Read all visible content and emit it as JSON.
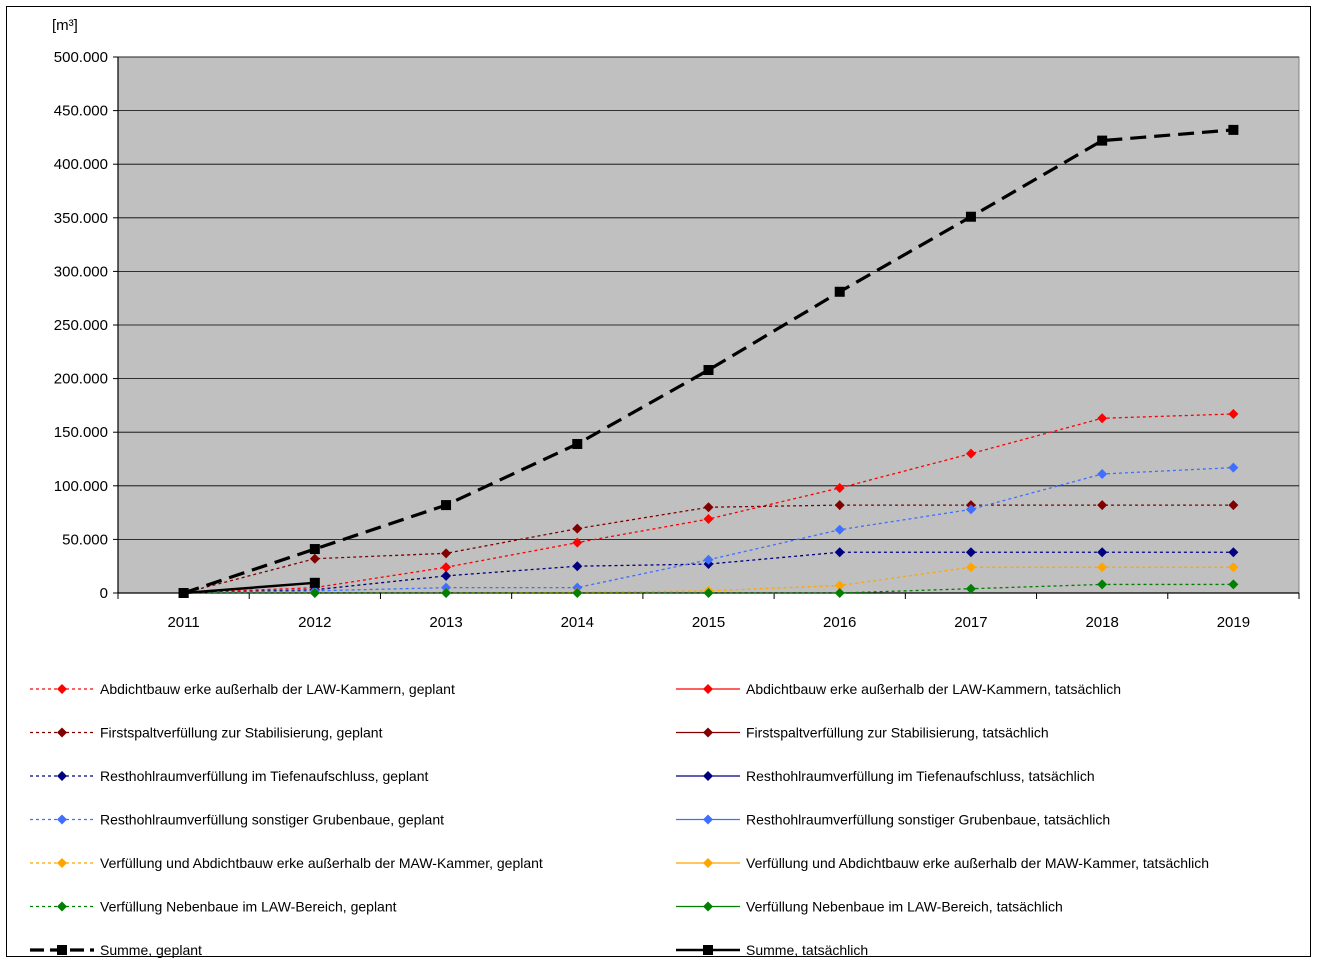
{
  "chart_data": {
    "type": "line",
    "unit_label": "[m³]",
    "x": [
      "2011",
      "2012",
      "2013",
      "2014",
      "2015",
      "2016",
      "2017",
      "2018",
      "2019"
    ],
    "ylim": [
      0,
      500000
    ],
    "yticks": [
      {
        "value": 0,
        "label": "0"
      },
      {
        "value": 50000,
        "label": "50.000"
      },
      {
        "value": 100000,
        "label": "100.000"
      },
      {
        "value": 150000,
        "label": "150.000"
      },
      {
        "value": 200000,
        "label": "200.000"
      },
      {
        "value": 250000,
        "label": "250.000"
      },
      {
        "value": 300000,
        "label": "300.000"
      },
      {
        "value": 350000,
        "label": "350.000"
      },
      {
        "value": 400000,
        "label": "400.000"
      },
      {
        "value": 450000,
        "label": "450.000"
      },
      {
        "value": 500000,
        "label": "500.000"
      }
    ],
    "grid": "horizontal",
    "legend_position": "bottom",
    "series": [
      {
        "name": "Abdichtbauw erke außerhalb der LAW-Kammern, geplant",
        "color": "#ff0000",
        "style": "dotted",
        "marker": "diamond",
        "values": [
          0,
          5000,
          24000,
          47000,
          69000,
          98000,
          130000,
          163000,
          167000
        ]
      },
      {
        "name": "Abdichtbauw erke außerhalb der LAW-Kammern, tatsächlich",
        "color": "#ff0000",
        "style": "solid",
        "marker": "diamond",
        "values": [
          0,
          null,
          null,
          null,
          null,
          null,
          null,
          null,
          null
        ]
      },
      {
        "name": "Firstspaltverfüllung zur Stabilisierung, geplant",
        "color": "#800000",
        "style": "dotted",
        "marker": "diamond",
        "values": [
          0,
          32000,
          37000,
          60000,
          80000,
          82000,
          82000,
          82000,
          82000
        ]
      },
      {
        "name": "Firstspaltverfüllung zur Stabilisierung, tatsächlich",
        "color": "#800000",
        "style": "solid",
        "marker": "diamond",
        "values": [
          0,
          null,
          null,
          null,
          null,
          null,
          null,
          null,
          null
        ]
      },
      {
        "name": "Resthohlraumverfüllung im Tiefenaufschluss, geplant",
        "color": "#000080",
        "style": "dotted",
        "marker": "diamond",
        "values": [
          0,
          3000,
          16000,
          25000,
          27000,
          38000,
          38000,
          38000,
          38000
        ]
      },
      {
        "name": "Resthohlraumverfüllung im Tiefenaufschluss, tatsächlich",
        "color": "#000080",
        "style": "solid",
        "marker": "diamond",
        "values": [
          0,
          null,
          null,
          null,
          null,
          null,
          null,
          null,
          null
        ]
      },
      {
        "name": "Resthohlraumverfüllung sonstiger Grubenbaue, geplant",
        "color": "#3f6fff",
        "style": "dotted",
        "marker": "diamond",
        "values": [
          0,
          2000,
          5000,
          5000,
          31000,
          59000,
          78000,
          111000,
          117000
        ]
      },
      {
        "name": "Resthohlraumverfüllung sonstiger Grubenbaue, tatsächlich",
        "color": "#3f6fff",
        "style": "solid",
        "marker": "diamond",
        "values": [
          0,
          null,
          null,
          null,
          null,
          null,
          null,
          null,
          null
        ]
      },
      {
        "name": "Verfüllung und Abdichtbauw erke außerhalb der MAW-Kammer, geplant",
        "color": "#ffa500",
        "style": "dotted",
        "marker": "diamond",
        "values": [
          0,
          0,
          0,
          500,
          2000,
          7000,
          24000,
          24000,
          24000
        ]
      },
      {
        "name": "Verfüllung und Abdichtbauw erke außerhalb der MAW-Kammer, tatsächlich",
        "color": "#ffa500",
        "style": "solid",
        "marker": "diamond",
        "values": [
          0,
          null,
          null,
          null,
          null,
          null,
          null,
          null,
          null
        ]
      },
      {
        "name": "Verfüllung Nebenbaue im LAW-Bereich, geplant",
        "color": "#008000",
        "style": "dotted",
        "marker": "diamond",
        "values": [
          0,
          0,
          0,
          0,
          0,
          0,
          4000,
          8000,
          8000
        ]
      },
      {
        "name": "Verfüllung Nebenbaue im LAW-Bereich, tatsächlich",
        "color": "#008000",
        "style": "solid",
        "marker": "diamond",
        "values": [
          0,
          null,
          null,
          null,
          null,
          null,
          null,
          null,
          null
        ]
      },
      {
        "name": "Summe, geplant",
        "color": "#000000",
        "style": "dashed",
        "marker": "square",
        "values": [
          0,
          41000,
          82000,
          139000,
          208000,
          281000,
          351000,
          422000,
          432000
        ]
      },
      {
        "name": "Summe, tatsächlich",
        "color": "#000000",
        "style": "solid",
        "marker": "square",
        "values": [
          0,
          9500,
          null,
          null,
          null,
          null,
          null,
          null,
          null
        ]
      }
    ]
  }
}
